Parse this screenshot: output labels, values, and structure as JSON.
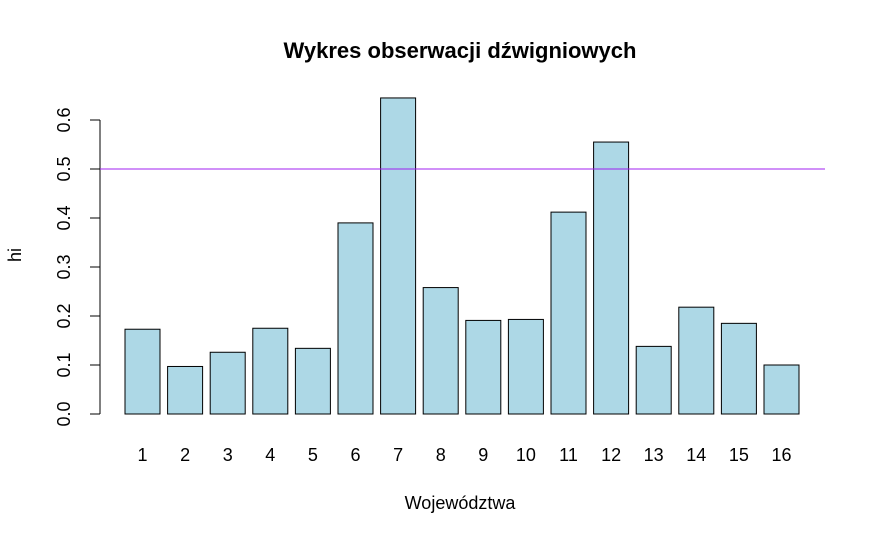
{
  "chart_data": {
    "type": "bar",
    "title": "Wykres obserwacji dźwigniowych",
    "xlabel": "Województwa",
    "ylabel": "hi",
    "categories": [
      "1",
      "2",
      "3",
      "4",
      "5",
      "6",
      "7",
      "8",
      "9",
      "10",
      "11",
      "12",
      "13",
      "14",
      "15",
      "16"
    ],
    "values": [
      0.173,
      0.097,
      0.126,
      0.175,
      0.134,
      0.39,
      0.645,
      0.258,
      0.191,
      0.193,
      0.412,
      0.555,
      0.138,
      0.218,
      0.185,
      0.1
    ],
    "ylim": [
      0,
      0.6
    ],
    "yticks": [
      "0.0",
      "0.1",
      "0.2",
      "0.3",
      "0.4",
      "0.5",
      "0.6"
    ],
    "reference_line": {
      "y": 0.5,
      "color": "#a020f0"
    },
    "bar_color": "#add8e6",
    "bar_border_color": "#000000",
    "grid": false,
    "legend": "none"
  }
}
